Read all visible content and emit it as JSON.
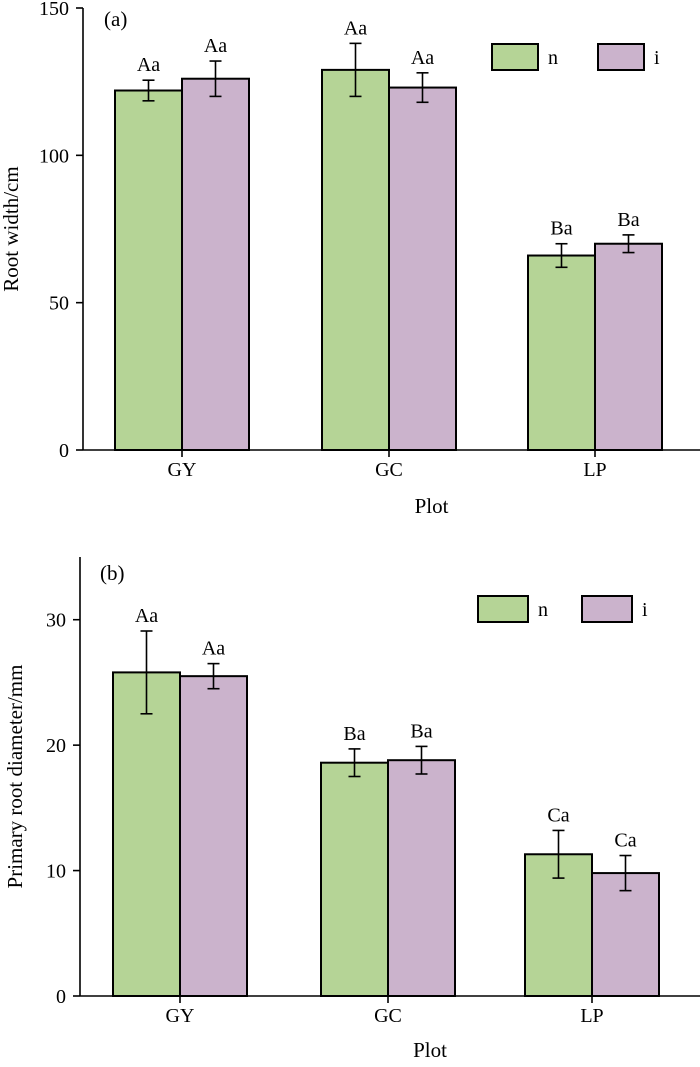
{
  "colors": {
    "n": "#b5d496",
    "i": "#cbb3cc",
    "stroke": "#000000"
  },
  "chart_data": [
    {
      "type": "bar",
      "panel_label": "(a)",
      "xlabel": "Plot",
      "ylabel": "Root width/cm",
      "ylim": [
        0,
        150
      ],
      "yticks": [
        0,
        50,
        100,
        150
      ],
      "categories": [
        "GY",
        "GC",
        "LP"
      ],
      "series": [
        {
          "name": "n",
          "values": [
            122,
            129,
            66
          ],
          "errors": [
            3.5,
            9,
            4
          ],
          "labels": [
            "Aa",
            "Aa",
            "Ba"
          ]
        },
        {
          "name": "i",
          "values": [
            126,
            123,
            70
          ],
          "errors": [
            6,
            5,
            3
          ],
          "labels": [
            "Aa",
            "Aa",
            "Ba"
          ]
        }
      ],
      "legend": {
        "position": "top-right",
        "entries": [
          "n",
          "i"
        ]
      },
      "grid": false
    },
    {
      "type": "bar",
      "panel_label": "(b)",
      "xlabel": "Plot",
      "ylabel": "Primary root diameter/mm",
      "ylim": [
        0,
        35
      ],
      "yticks": [
        0,
        10,
        20,
        30
      ],
      "categories": [
        "GY",
        "GC",
        "LP"
      ],
      "series": [
        {
          "name": "n",
          "values": [
            25.8,
            18.6,
            11.3
          ],
          "errors": [
            3.3,
            1.1,
            1.9
          ],
          "labels": [
            "Aa",
            "Ba",
            "Ca"
          ]
        },
        {
          "name": "i",
          "values": [
            25.5,
            18.8,
            9.8
          ],
          "errors": [
            1.0,
            1.1,
            1.4
          ],
          "labels": [
            "Aa",
            "Ba",
            "Ca"
          ]
        }
      ],
      "legend": {
        "position": "top-right",
        "entries": [
          "n",
          "i"
        ]
      },
      "grid": false
    }
  ]
}
